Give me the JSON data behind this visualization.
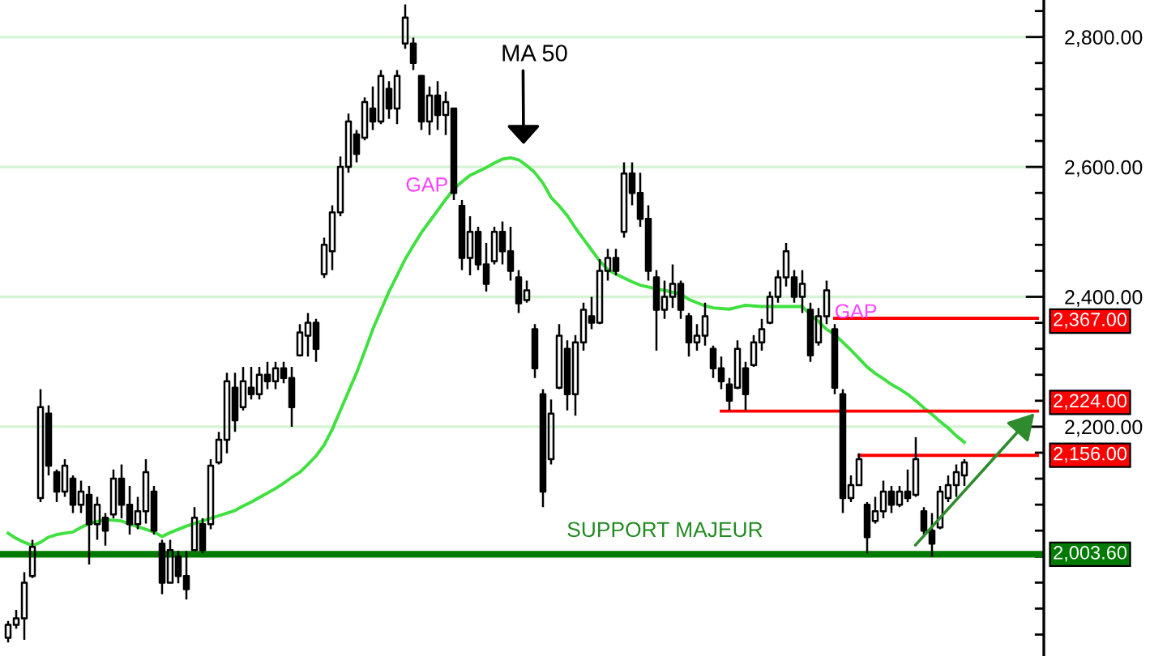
{
  "chart_data": {
    "type": "candlestick",
    "color": "#000000",
    "categories": [
      null,
      null,
      null,
      null,
      null,
      null,
      null,
      null,
      null,
      null,
      null,
      null,
      null,
      null,
      null,
      null,
      null,
      null,
      null,
      null,
      null,
      null,
      null,
      null,
      null,
      null,
      null,
      null,
      null,
      null,
      null,
      null,
      null,
      null,
      null,
      null,
      null,
      null,
      null,
      null,
      null,
      null,
      null,
      null,
      null,
      null,
      null,
      null,
      null,
      null,
      null,
      null,
      null,
      null,
      null,
      null,
      null,
      null,
      null,
      null,
      null,
      null,
      null,
      null,
      null,
      null,
      null,
      null,
      null,
      null,
      null,
      null,
      null,
      null,
      null,
      null,
      null,
      null,
      null,
      null,
      null,
      null,
      null,
      null,
      null,
      null,
      null,
      null,
      null,
      null,
      null,
      null,
      null,
      null,
      null,
      null,
      null,
      null,
      null,
      null,
      null,
      null,
      null,
      null,
      null,
      null,
      null,
      null,
      null,
      null,
      null,
      null,
      null,
      null,
      null,
      null,
      null,
      null,
      null,
      null,
      null,
      null,
      null,
      null,
      null,
      null,
      null,
      null
    ],
    "ohlc": [
      [
        1875,
        1901,
        1868,
        1895
      ],
      [
        1895,
        1918,
        1889,
        1905
      ],
      [
        1905,
        1976,
        1872,
        1960
      ],
      [
        1970,
        2026,
        1967,
        2015
      ],
      [
        2090,
        2258,
        2084,
        2230
      ],
      [
        2220,
        2233,
        2125,
        2140
      ],
      [
        2130,
        2134,
        2084,
        2100
      ],
      [
        2100,
        2150,
        2092,
        2140
      ],
      [
        2120,
        2125,
        2067,
        2080
      ],
      [
        2080,
        2117,
        2067,
        2100
      ],
      [
        2095,
        2109,
        1988,
        2050
      ],
      [
        2050,
        2092,
        2026,
        2080
      ],
      [
        2060,
        2067,
        2017,
        2040
      ],
      [
        2065,
        2134,
        2059,
        2120
      ],
      [
        2120,
        2142,
        2059,
        2080
      ],
      [
        2080,
        2109,
        2034,
        2050
      ],
      [
        2050,
        2092,
        2042,
        2070
      ],
      [
        2070,
        2150,
        2051,
        2130
      ],
      [
        2100,
        2109,
        2034,
        2040
      ],
      [
        2020,
        2026,
        1942,
        1960
      ],
      [
        1960,
        2026,
        1959,
        2010
      ],
      [
        2000,
        2009,
        1959,
        1970
      ],
      [
        1970,
        2009,
        1934,
        1950
      ],
      [
        2010,
        2076,
        2009,
        2060
      ],
      [
        2050,
        2059,
        2005,
        2010
      ],
      [
        2050,
        2150,
        2042,
        2140
      ],
      [
        2145,
        2192,
        2142,
        2180
      ],
      [
        2180,
        2283,
        2159,
        2270
      ],
      [
        2260,
        2283,
        2192,
        2210
      ],
      [
        2230,
        2292,
        2225,
        2270
      ],
      [
        2260,
        2292,
        2242,
        2250
      ],
      [
        2250,
        2292,
        2242,
        2280
      ],
      [
        2280,
        2300,
        2258,
        2270
      ],
      [
        2270,
        2300,
        2258,
        2290
      ],
      [
        2290,
        2300,
        2267,
        2275
      ],
      [
        2275,
        2292,
        2200,
        2230
      ],
      [
        2310,
        2358,
        2308,
        2345
      ],
      [
        2340,
        2375,
        2308,
        2360
      ],
      [
        2360,
        2366,
        2300,
        2320
      ],
      [
        2435,
        2491,
        2429,
        2480
      ],
      [
        2470,
        2541,
        2441,
        2530
      ],
      [
        2530,
        2616,
        2524,
        2600
      ],
      [
        2600,
        2682,
        2591,
        2670
      ],
      [
        2650,
        2657,
        2607,
        2620
      ],
      [
        2645,
        2707,
        2641,
        2700
      ],
      [
        2690,
        2724,
        2657,
        2670
      ],
      [
        2670,
        2749,
        2666,
        2740
      ],
      [
        2720,
        2732,
        2674,
        2690
      ],
      [
        2690,
        2749,
        2666,
        2740
      ],
      [
        2790,
        2850,
        2782,
        2830
      ],
      [
        2790,
        2799,
        2749,
        2760
      ],
      [
        2740,
        2741,
        2657,
        2670
      ],
      [
        2670,
        2724,
        2649,
        2710
      ],
      [
        2710,
        2732,
        2657,
        2680
      ],
      [
        2680,
        2716,
        2649,
        2700
      ],
      [
        2690,
        2691,
        2549,
        2560
      ],
      [
        2540,
        2549,
        2441,
        2460
      ],
      [
        2460,
        2524,
        2433,
        2500
      ],
      [
        2500,
        2508,
        2441,
        2450
      ],
      [
        2450,
        2483,
        2408,
        2420
      ],
      [
        2455,
        2508,
        2450,
        2500
      ],
      [
        2500,
        2516,
        2450,
        2470
      ],
      [
        2470,
        2508,
        2425,
        2440
      ],
      [
        2430,
        2441,
        2375,
        2390
      ],
      [
        2395,
        2425,
        2391,
        2410
      ],
      [
        2350,
        2358,
        2275,
        2290
      ],
      [
        2250,
        2258,
        2076,
        2100
      ],
      [
        2150,
        2242,
        2142,
        2220
      ],
      [
        2260,
        2358,
        2258,
        2340
      ],
      [
        2320,
        2333,
        2225,
        2250
      ],
      [
        2250,
        2341,
        2217,
        2330
      ],
      [
        2330,
        2391,
        2317,
        2380
      ],
      [
        2370,
        2400,
        2350,
        2360
      ],
      [
        2360,
        2458,
        2358,
        2440
      ],
      [
        2440,
        2474,
        2425,
        2460
      ],
      [
        2460,
        2474,
        2433,
        2440
      ],
      [
        2500,
        2607,
        2491,
        2590
      ],
      [
        2590,
        2607,
        2541,
        2560
      ],
      [
        2560,
        2591,
        2508,
        2520
      ],
      [
        2520,
        2541,
        2425,
        2440
      ],
      [
        2430,
        2441,
        2317,
        2380
      ],
      [
        2380,
        2425,
        2366,
        2400
      ],
      [
        2400,
        2450,
        2383,
        2420
      ],
      [
        2420,
        2425,
        2366,
        2380
      ],
      [
        2370,
        2375,
        2308,
        2330
      ],
      [
        2330,
        2358,
        2317,
        2340
      ],
      [
        2340,
        2391,
        2325,
        2370
      ],
      [
        2320,
        2325,
        2275,
        2290
      ],
      [
        2290,
        2308,
        2258,
        2270
      ],
      [
        2265,
        2275,
        2225,
        2240
      ],
      [
        2260,
        2333,
        2258,
        2320
      ],
      [
        2290,
        2300,
        2225,
        2250
      ],
      [
        2295,
        2341,
        2292,
        2330
      ],
      [
        2330,
        2366,
        2317,
        2350
      ],
      [
        2360,
        2408,
        2358,
        2400
      ],
      [
        2400,
        2441,
        2391,
        2430
      ],
      [
        2430,
        2483,
        2416,
        2470
      ],
      [
        2430,
        2441,
        2391,
        2400
      ],
      [
        2400,
        2441,
        2375,
        2420
      ],
      [
        2380,
        2391,
        2300,
        2310
      ],
      [
        2330,
        2383,
        2325,
        2370
      ],
      [
        2370,
        2425,
        2358,
        2410
      ],
      [
        2350,
        2358,
        2250,
        2260
      ],
      [
        2250,
        2258,
        2067,
        2090
      ],
      [
        2090,
        2125,
        2084,
        2110
      ],
      [
        2110,
        2159,
        2109,
        2150
      ],
      [
        2080,
        2084,
        2005,
        2030
      ],
      [
        2055,
        2092,
        2051,
        2070
      ],
      [
        2070,
        2117,
        2059,
        2100
      ],
      [
        2100,
        2109,
        2067,
        2080
      ],
      [
        2080,
        2109,
        2076,
        2100
      ],
      [
        2100,
        2134,
        2084,
        2090
      ],
      [
        2095,
        2184,
        2092,
        2150
      ],
      [
        2070,
        2076,
        2034,
        2040
      ],
      [
        2040,
        2067,
        2000,
        2020
      ],
      [
        2045,
        2109,
        2042,
        2100
      ],
      [
        2090,
        2125,
        2084,
        2110
      ],
      [
        2110,
        2142,
        2092,
        2130
      ],
      [
        2125,
        2150,
        2109,
        2145
      ],
      null,
      null,
      null,
      null,
      null,
      null,
      null,
      null,
      null
    ],
    "series": [
      {
        "type": "line",
        "color": "#40e040",
        "values": [
          2036,
          2028,
          2022,
          2017,
          2022,
          2030,
          2034,
          2036,
          2038,
          2045,
          2051,
          2054,
          2057,
          2056,
          2055,
          2050,
          2046,
          2042,
          2038,
          2031,
          2037,
          2042,
          2047,
          2051,
          2055,
          2059,
          2063,
          2067,
          2071,
          2078,
          2084,
          2091,
          2098,
          2105,
          2113,
          2122,
          2130,
          2142,
          2155,
          2172,
          2196,
          2225,
          2254,
          2283,
          2316,
          2350,
          2379,
          2408,
          2433,
          2458,
          2479,
          2499,
          2516,
          2533,
          2550,
          2566,
          2577,
          2587,
          2593,
          2599,
          2606,
          2612,
          2614,
          2611,
          2602,
          2591,
          2575,
          2553,
          2540,
          2525,
          2506,
          2489,
          2472,
          2455,
          2442,
          2435,
          2429,
          2423,
          2418,
          2415,
          2412,
          2410,
          2407,
          2404,
          2396,
          2391,
          2386,
          2383,
          2382,
          2381,
          2384,
          2387,
          2386,
          2385,
          2385,
          2385,
          2385,
          2385,
          2385,
          2373,
          2362,
          2350,
          2342,
          2330,
          2318,
          2305,
          2292,
          2282,
          2274,
          2265,
          2258,
          2250,
          2240,
          2229,
          2219,
          2208,
          2198,
          2186,
          2176,
          null,
          null,
          null,
          null,
          null,
          null,
          null,
          null,
          null
        ]
      },
      {
        "type": "line",
        "name": "2,367.00",
        "color": "#ff0000",
        "values": [
          null,
          null,
          null,
          null,
          null,
          null,
          null,
          null,
          null,
          null,
          null,
          null,
          null,
          null,
          null,
          null,
          null,
          null,
          null,
          null,
          null,
          null,
          null,
          null,
          null,
          null,
          null,
          null,
          null,
          null,
          null,
          null,
          null,
          null,
          null,
          null,
          null,
          null,
          null,
          null,
          null,
          null,
          null,
          null,
          null,
          null,
          null,
          null,
          null,
          null,
          null,
          null,
          null,
          null,
          null,
          null,
          null,
          null,
          null,
          null,
          null,
          null,
          null,
          null,
          null,
          null,
          null,
          null,
          null,
          null,
          null,
          null,
          null,
          null,
          null,
          null,
          null,
          null,
          null,
          null,
          null,
          null,
          null,
          null,
          null,
          null,
          null,
          null,
          null,
          null,
          null,
          null,
          null,
          null,
          null,
          null,
          null,
          null,
          null,
          null,
          null,
          null,
          2367,
          2367,
          2367,
          2367,
          2367,
          2367,
          2367,
          2367,
          2367,
          2367,
          2367,
          2367,
          2367,
          2367,
          2367,
          2367,
          2367,
          2367,
          2367,
          2367,
          2367,
          2367,
          2367,
          2367,
          2367,
          2367
        ]
      },
      {
        "type": "line",
        "name": "2,224.00",
        "color": "#ff0000",
        "values": [
          null,
          null,
          null,
          null,
          null,
          null,
          null,
          null,
          null,
          null,
          null,
          null,
          null,
          null,
          null,
          null,
          null,
          null,
          null,
          null,
          null,
          null,
          null,
          null,
          null,
          null,
          null,
          null,
          null,
          null,
          null,
          null,
          null,
          null,
          null,
          null,
          null,
          null,
          null,
          null,
          null,
          null,
          null,
          null,
          null,
          null,
          null,
          null,
          null,
          null,
          null,
          null,
          null,
          null,
          null,
          null,
          null,
          null,
          null,
          null,
          null,
          null,
          null,
          null,
          null,
          null,
          null,
          null,
          null,
          null,
          null,
          null,
          null,
          null,
          null,
          null,
          null,
          null,
          null,
          null,
          null,
          null,
          null,
          null,
          null,
          null,
          null,
          null,
          2224,
          2224,
          2224,
          2224,
          2224,
          2224,
          2224,
          2224,
          2224,
          2224,
          2224,
          2224,
          2224,
          2224,
          2224,
          2224,
          2224,
          2224,
          2224,
          2224,
          2224,
          2224,
          2224,
          2224,
          2224,
          2224,
          2224,
          2224,
          2224,
          2224,
          2224,
          2224,
          2224,
          2224,
          2224,
          2224,
          2224,
          2224,
          2224,
          2224
        ]
      },
      {
        "type": "line",
        "name": "2,156.00",
        "color": "#ff0000",
        "values": [
          null,
          null,
          null,
          null,
          null,
          null,
          null,
          null,
          null,
          null,
          null,
          null,
          null,
          null,
          null,
          null,
          null,
          null,
          null,
          null,
          null,
          null,
          null,
          null,
          null,
          null,
          null,
          null,
          null,
          null,
          null,
          null,
          null,
          null,
          null,
          null,
          null,
          null,
          null,
          null,
          null,
          null,
          null,
          null,
          null,
          null,
          null,
          null,
          null,
          null,
          null,
          null,
          null,
          null,
          null,
          null,
          null,
          null,
          null,
          null,
          null,
          null,
          null,
          null,
          null,
          null,
          null,
          null,
          null,
          null,
          null,
          null,
          null,
          null,
          null,
          null,
          null,
          null,
          null,
          null,
          null,
          null,
          null,
          null,
          null,
          null,
          null,
          null,
          null,
          null,
          null,
          null,
          null,
          null,
          null,
          null,
          null,
          null,
          null,
          null,
          null,
          null,
          null,
          null,
          null,
          2156,
          2156,
          2156,
          2156,
          2156,
          2156,
          2156,
          2156,
          2156,
          2156,
          2156,
          2156,
          2156,
          2156,
          2156,
          2156,
          2156,
          2156,
          2156,
          2156,
          2156,
          2156,
          2156
        ]
      }
    ],
    "ref_lines": [
      {
        "axis": "y",
        "value": 2003.6,
        "label": "2,003.60",
        "color": "#007a00"
      }
    ],
    "ylim": [
      1847,
      2857
    ],
    "yticks": [
      {
        "value": 1880,
        "label": null
      },
      {
        "value": 1920,
        "label": null
      },
      {
        "value": 1960,
        "label": null
      },
      {
        "value": 2000,
        "label": null
      },
      {
        "value": 2040,
        "label": null
      },
      {
        "value": 2080,
        "label": null
      },
      {
        "value": 2120,
        "label": null
      },
      {
        "value": 2160,
        "label": null
      },
      {
        "value": 2200,
        "label": "2,200.00"
      },
      {
        "value": 2240,
        "label": null
      },
      {
        "value": 2280,
        "label": null
      },
      {
        "value": 2320,
        "label": null
      },
      {
        "value": 2360,
        "label": null
      },
      {
        "value": 2400,
        "label": "2,400.00"
      },
      {
        "value": 2440,
        "label": null
      },
      {
        "value": 2480,
        "label": null
      },
      {
        "value": 2520,
        "label": null
      },
      {
        "value": 2560,
        "label": null
      },
      {
        "value": 2600,
        "label": "2,600.00"
      },
      {
        "value": 2640,
        "label": null
      },
      {
        "value": 2680,
        "label": null
      },
      {
        "value": 2720,
        "label": null
      },
      {
        "value": 2760,
        "label": null
      },
      {
        "value": 2800,
        "label": "2,800.00"
      },
      {
        "value": 2840,
        "label": null
      }
    ],
    "tick_labels": "y",
    "grid": "y",
    "annotations": [
      "MA 50",
      "GAP",
      "GAP",
      "SUPPORT MAJEUR"
    ]
  }
}
